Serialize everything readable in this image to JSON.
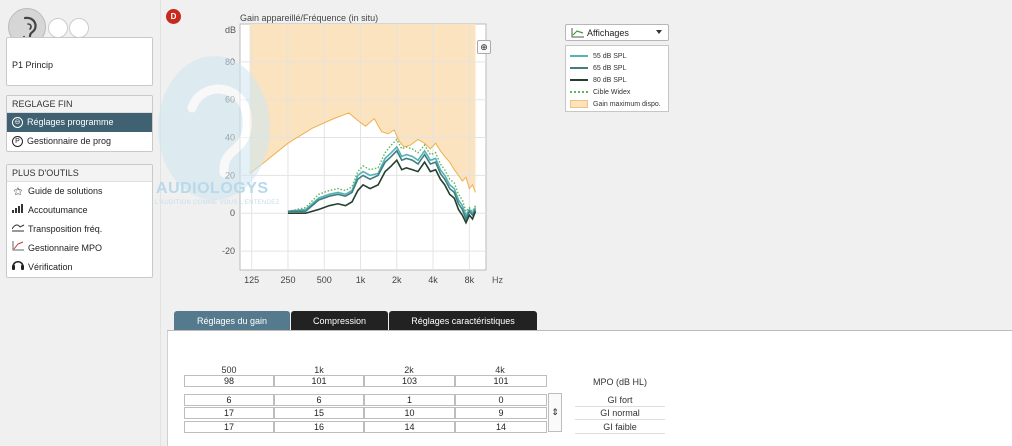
{
  "side_badge": "D",
  "program": {
    "label": "P1  Princip"
  },
  "reglage_fin": {
    "header": "REGLAGE FIN",
    "items": [
      {
        "label": "Réglages programme",
        "icon": "adjust-circle-icon",
        "active": true
      },
      {
        "label": "Gestionnaire de prog",
        "icon": "program-p-icon",
        "active": false
      }
    ]
  },
  "plus_outils": {
    "header": "PLUS D'OUTILS",
    "items": [
      {
        "label": "Guide de solutions",
        "icon": "magic-wand-icon"
      },
      {
        "label": "Accoutumance",
        "icon": "signal-bars-icon"
      },
      {
        "label": "Transposition fréq.",
        "icon": "transposition-icon"
      },
      {
        "label": "Gestionnaire MPO",
        "icon": "mpo-graph-icon"
      },
      {
        "label": "Vérification",
        "icon": "headphones-icon"
      }
    ]
  },
  "watermark": {
    "brand": "AUDIOLOGYS",
    "tagline": "L'AUDITION COMME VOUS L'ENTENDEZ"
  },
  "chart_data": {
    "type": "line",
    "title": "Gain appareillé/Fréquence (in situ)",
    "ylabel": "dB",
    "xlabel": "Hz",
    "ylim": [
      -30,
      100
    ],
    "yticks": [
      -20,
      0,
      20,
      40,
      60,
      80
    ],
    "xticks": [
      "125",
      "250",
      "500",
      "1k",
      "2k",
      "4k",
      "8k"
    ],
    "xtick_values": [
      125,
      250,
      500,
      1000,
      2000,
      4000,
      8000
    ],
    "xlim": [
      100,
      11000
    ],
    "x_scale": "log",
    "series": [
      {
        "name": "Gain maximum dispo.",
        "kind": "area",
        "color": "#f0b04a",
        "fill": "#fbe3bf",
        "x": [
          120,
          160,
          250,
          400,
          600,
          800,
          950,
          1100,
          1300,
          1500,
          1700,
          1900,
          2100,
          2300,
          2600,
          3000,
          3400,
          3800,
          4200,
          4600,
          5000,
          5500,
          6000,
          6500,
          7000,
          7500,
          8000,
          8500,
          9000
        ],
        "y": [
          21,
          27,
          37,
          45,
          50,
          53,
          49,
          46,
          50,
          43,
          42,
          44,
          38,
          35,
          36,
          39,
          37,
          34,
          37,
          33,
          30,
          27,
          23,
          20,
          17,
          19,
          13,
          15,
          11
        ]
      },
      {
        "name": "Cible Widex",
        "kind": "dotted",
        "color": "#5fb35a",
        "x": [
          250,
          350,
          450,
          550,
          650,
          750,
          850,
          950,
          1050,
          1200,
          1400,
          1600,
          1800,
          2000,
          2200,
          2400,
          2700,
          3000,
          3400,
          3800,
          4200,
          4600,
          5000,
          5500,
          6000,
          6500,
          7000,
          7500,
          8000,
          8500,
          9000
        ],
        "y": [
          1,
          3,
          10,
          12,
          13,
          12,
          14,
          22,
          25,
          23,
          24,
          32,
          36,
          39,
          34,
          35,
          34,
          32,
          36,
          31,
          32,
          26,
          23,
          18,
          16,
          10,
          7,
          1,
          3,
          1,
          4
        ]
      },
      {
        "name": "55 dB SPL",
        "kind": "line",
        "color": "#55b2b8",
        "x": [
          250,
          350,
          450,
          550,
          650,
          750,
          850,
          950,
          1050,
          1200,
          1400,
          1600,
          1800,
          2000,
          2200,
          2400,
          2700,
          3000,
          3400,
          3800,
          4200,
          4600,
          5000,
          5500,
          6000,
          6500,
          7000,
          7500,
          8000,
          8500,
          9000
        ],
        "y": [
          1,
          2,
          8,
          10,
          11,
          10,
          12,
          20,
          22,
          20,
          21,
          29,
          32,
          35,
          30,
          31,
          30,
          28,
          33,
          28,
          29,
          23,
          20,
          15,
          13,
          7,
          4,
          -1,
          2,
          0,
          3
        ]
      },
      {
        "name": "65 dB SPL",
        "kind": "line",
        "color": "#3f7f7f",
        "x": [
          250,
          350,
          450,
          550,
          650,
          750,
          850,
          950,
          1050,
          1200,
          1400,
          1600,
          1800,
          2000,
          2200,
          2400,
          2700,
          3000,
          3400,
          3800,
          4200,
          4600,
          5000,
          5500,
          6000,
          6500,
          7000,
          7500,
          8000,
          8500,
          9000
        ],
        "y": [
          1,
          1,
          7,
          9,
          10,
          9,
          11,
          18,
          20,
          18,
          20,
          27,
          30,
          33,
          28,
          29,
          28,
          26,
          31,
          26,
          27,
          21,
          18,
          13,
          11,
          5,
          2,
          -3,
          1,
          -1,
          2
        ]
      },
      {
        "name": "80 dB SPL",
        "kind": "line",
        "color": "#23412f",
        "x": [
          250,
          350,
          450,
          550,
          650,
          750,
          850,
          950,
          1050,
          1200,
          1400,
          1600,
          1800,
          2000,
          2200,
          2400,
          2700,
          3000,
          3400,
          3800,
          4200,
          4600,
          5000,
          5500,
          6000,
          6500,
          7000,
          7500,
          8000,
          8500,
          9000
        ],
        "y": [
          0,
          0,
          2,
          4,
          5,
          4,
          6,
          12,
          15,
          13,
          15,
          22,
          25,
          28,
          23,
          24,
          23,
          22,
          27,
          22,
          23,
          18,
          15,
          10,
          8,
          2,
          -1,
          -5,
          -1,
          -3,
          1
        ]
      }
    ]
  },
  "affichages": {
    "label": "Affichages"
  },
  "legend": [
    {
      "label": "55 dB SPL",
      "color": "#55b2b8",
      "kind": "line"
    },
    {
      "label": "65 dB SPL",
      "color": "#3f7f7f",
      "kind": "line"
    },
    {
      "label": "80 dB SPL",
      "color": "#23412f",
      "kind": "line"
    },
    {
      "label": "Cible Widex",
      "color": "#5fb35a",
      "kind": "dotted"
    },
    {
      "label": "Gain maximum dispo.",
      "color": "#f0b04a",
      "kind": "swatch"
    }
  ],
  "tabs": [
    {
      "label": "Réglages du gain",
      "active": true
    },
    {
      "label": "Compression",
      "active": false
    },
    {
      "label": "Réglages caractéristiques",
      "active": false
    }
  ],
  "gain_table": {
    "frequencies": [
      "500",
      "1k",
      "2k",
      "4k"
    ],
    "mpo_label": "MPO (dB HL)",
    "mpo": [
      "98",
      "101",
      "103",
      "101"
    ],
    "rows": [
      {
        "label": "GI fort",
        "values": [
          "6",
          "6",
          "1",
          "0"
        ]
      },
      {
        "label": "GI normal",
        "values": [
          "17",
          "15",
          "10",
          "9"
        ]
      },
      {
        "label": "GI faible",
        "values": [
          "17",
          "16",
          "14",
          "14"
        ]
      }
    ]
  }
}
